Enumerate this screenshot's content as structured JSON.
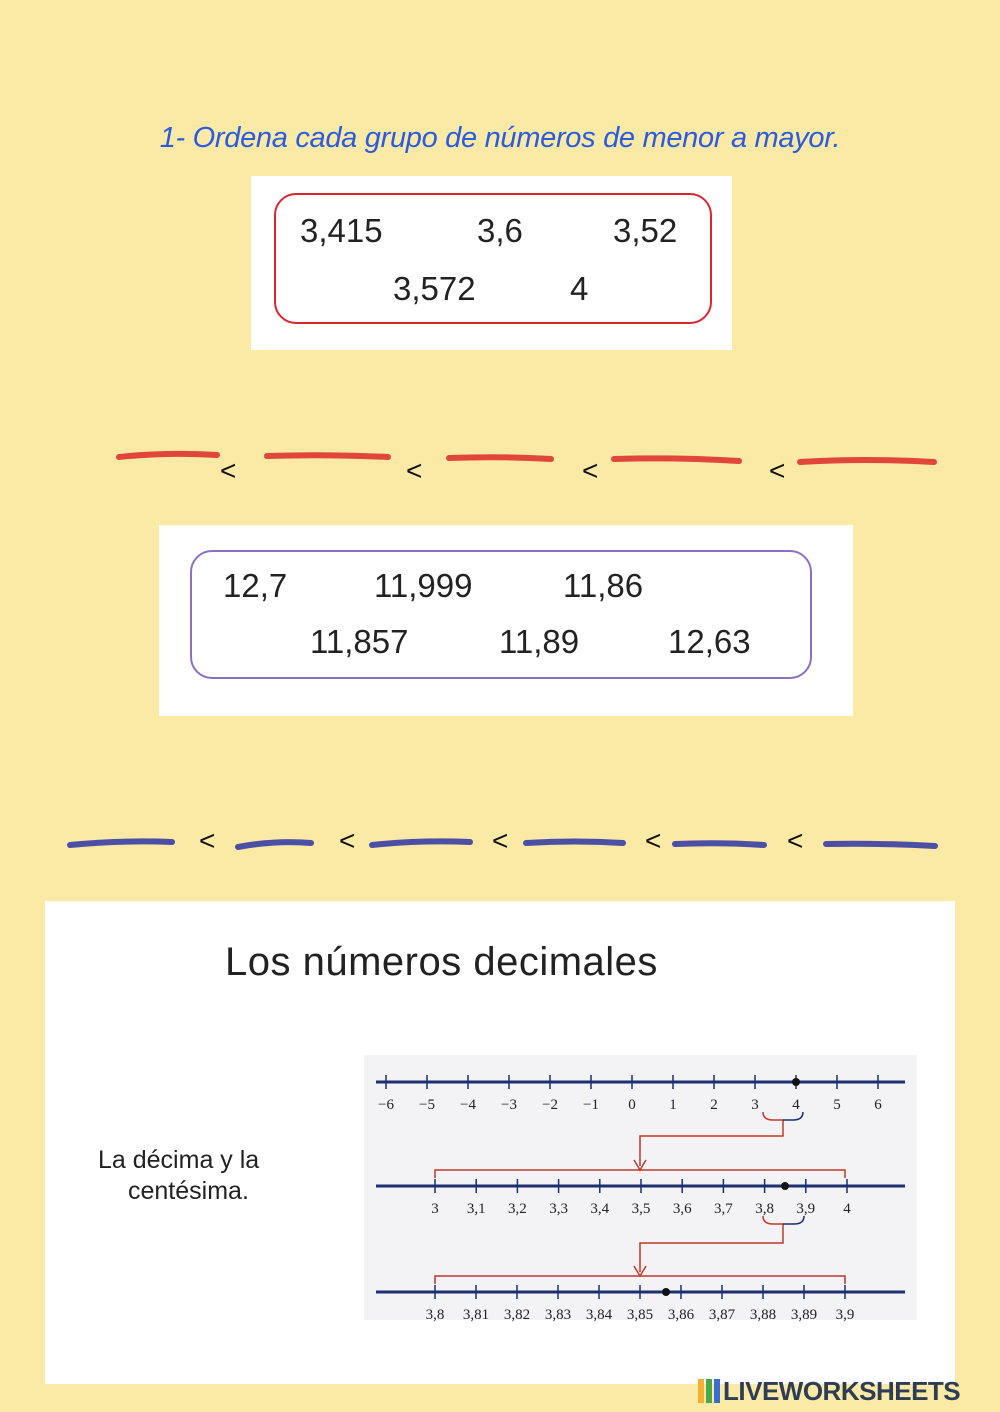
{
  "instruction": "1- Ordena cada grupo de números de menor a mayor.",
  "group1": {
    "numbers": [
      "3,415",
      "3,6",
      "3,52",
      "3,572",
      "4"
    ],
    "border_color": "#d9262e",
    "blank_color": "#e0473a",
    "separator": "<"
  },
  "group2": {
    "numbers": [
      "12,7",
      "11,999",
      "11,86",
      "11,857",
      "11,89",
      "12,63"
    ],
    "border_color": "#8a6fc2",
    "blank_color": "#4c4fa6",
    "separator": "<"
  },
  "lesson": {
    "title": "Los números decimales",
    "subtitle_line1": "La décima y la",
    "subtitle_line2": "centésima.",
    "line1_labels": [
      "−6",
      "−5",
      "−4",
      "−3",
      "−2",
      "−1",
      "0",
      "1",
      "2",
      "3",
      "4",
      "5",
      "6"
    ],
    "line2_labels": [
      "3",
      "3,1",
      "3,2",
      "3,3",
      "3,4",
      "3,5",
      "3,6",
      "3,7",
      "3,8",
      "3,9",
      "4"
    ],
    "line3_labels": [
      "3,8",
      "3,81",
      "3,82",
      "3,83",
      "3,84",
      "3,85",
      "3,86",
      "3,87",
      "3,88",
      "3,89",
      "3,9"
    ],
    "axis_color": "#1c2f6e",
    "bracket_color": "#c0392b"
  },
  "footer": {
    "brand": "LIVEWORKSHEETS"
  }
}
